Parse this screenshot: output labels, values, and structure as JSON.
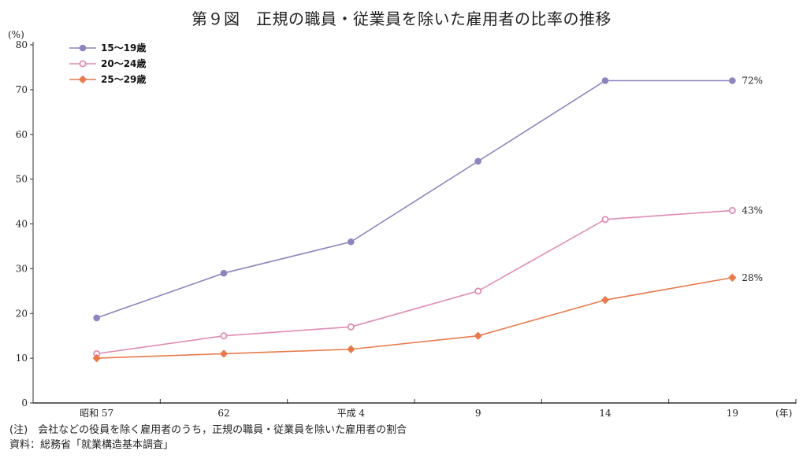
{
  "chart_data": {
    "type": "line",
    "title": "第９図　正規の職員・従業員を除いた雇用者の比率の推移",
    "ylabel": "(%)",
    "xlabel": "(年)",
    "ylim": [
      0,
      80
    ],
    "yticks": [
      0,
      10,
      20,
      30,
      40,
      50,
      60,
      70,
      80
    ],
    "categories": [
      "昭和 57",
      "62",
      "平成 4",
      "9",
      "14",
      "19"
    ],
    "series": [
      {
        "name": "15～19歳",
        "values": [
          19,
          29,
          36,
          54,
          72,
          72
        ],
        "color": "#8c86be",
        "marker": "circle-filled",
        "end_label": "72%"
      },
      {
        "name": "20～24歳",
        "values": [
          11,
          15,
          17,
          25,
          41,
          43
        ],
        "color": "#e08cb4",
        "marker": "circle-open",
        "end_label": "43%"
      },
      {
        "name": "25～29歳",
        "values": [
          10,
          11,
          12,
          15,
          23,
          28
        ],
        "color": "#e87a4c",
        "marker": "diamond",
        "end_label": "28%"
      }
    ],
    "legend_position": "top-left",
    "grid": false
  },
  "notes": {
    "note": "(注)　会社などの役員を除く雇用者のうち，正規の職員・従業員を除いた雇用者の割合",
    "source": "資料：総務省「就業構造基本調査」"
  }
}
